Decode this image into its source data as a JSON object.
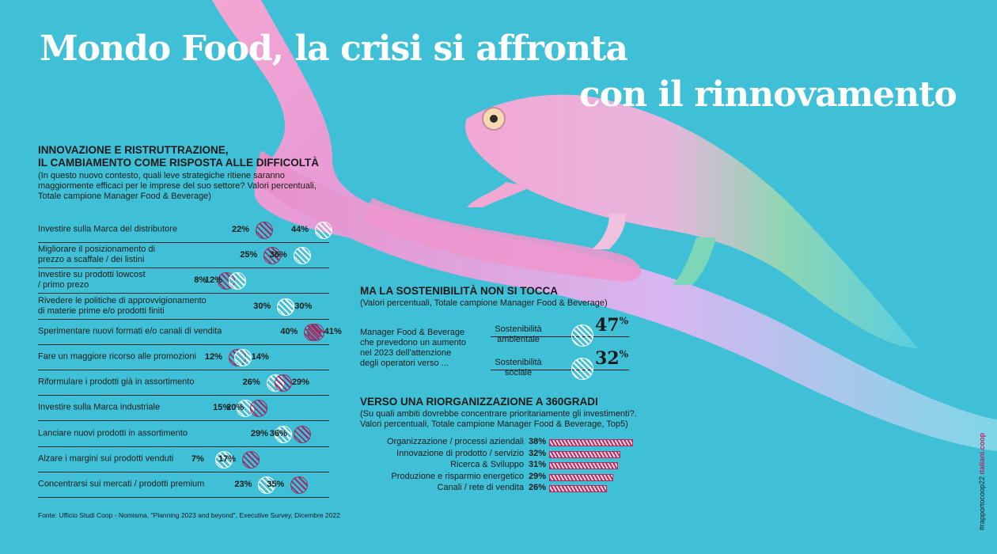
{
  "header": {
    "title_line1": "Mondo Food, la crisi si affronta",
    "title_line2": "con il rinnovamento"
  },
  "colors": {
    "background": "#3fc0d6",
    "accent_magenta": "#9a2b63",
    "bar_magenta": "#b22a5e",
    "branch_pink": "#f2a7d0"
  },
  "chart_data": [
    {
      "type": "dot_plot",
      "title": "INNOVAZIONE E RISTRUTTRAZIONE,",
      "title_line2": "IL CAMBIAMENTO COME RISPOSTA ALLE DIFFICOLTÀ",
      "subtitle": "(In questo nuovo contesto, quali leve strategiche ritiene saranno maggiormente efficaci per le imprese del suo settore? Valori percentuali, Totale campione Manager Food & Beverage)",
      "series": [
        {
          "name": "",
          "color": "magenta",
          "values": [
            22,
            25,
            8,
            30,
            40,
            12,
            26,
            15,
            29,
            7,
            23
          ]
        },
        {
          "name": "",
          "color": "white",
          "values": [
            44,
            36,
            12,
            30,
            41,
            14,
            29,
            20,
            36,
            17,
            35
          ]
        }
      ],
      "categories": [
        "Investire sulla Marca del distributore",
        "Migliorare il posizionamento di prezzo a scaffale / dei listini",
        "Investire su prodotti lowcost / primo prezo",
        "Rivedere le politiche di approvvigionamento di materie prime e/o prodotti finiti",
        "Sperimentare nuovi formati e/o canali di vendita",
        "Fare un maggiore ricorso alle promozioni",
        "Riformulare i prodotti già in assortimento",
        "Investire sulla Marca industriale",
        "Lanciare nuovi prodotti in assortimento",
        "Alzare i margini sui prodotti venduti",
        "Concentrarsi sui mercati / prodotti premium"
      ],
      "rows": [
        {
          "label_lines": [
            "Investire sulla Marca del distributore"
          ],
          "a": 22,
          "a_color": "magenta",
          "b": 44,
          "b_color": "white"
        },
        {
          "label_lines": [
            "Migliorare il posizionamento di",
            "prezzo a scaffale / dei listini"
          ],
          "a": 25,
          "a_color": "magenta",
          "b": 36,
          "b_color": "white"
        },
        {
          "label_lines": [
            "Investire su prodotti lowcost",
            "/ primo prezo"
          ],
          "a": 8,
          "a_color": "magenta",
          "b": 12,
          "b_color": "white"
        },
        {
          "label_lines": [
            "Rivedere le politiche di approvvigionamento",
            "di materie prime e/o prodotti finiti"
          ],
          "a": 30,
          "a_color": "white",
          "b": 30,
          "b_color": "white"
        },
        {
          "label_lines": [
            "Sperimentare nuovi formati e/o canali di vendita"
          ],
          "a": 40,
          "a_color": "magenta",
          "b": 41,
          "b_color": "magenta"
        },
        {
          "label_lines": [
            "Fare un maggiore ricorso alle promozioni"
          ],
          "a": 12,
          "a_color": "magenta",
          "b": 14,
          "b_color": "white"
        },
        {
          "label_lines": [
            "Riformulare i prodotti già in assortimento"
          ],
          "a": 26,
          "a_color": "white",
          "b": 29,
          "b_color": "magenta"
        },
        {
          "label_lines": [
            "Investire sulla Marca industriale"
          ],
          "a": 15,
          "a_color": "white",
          "b": 20,
          "b_color": "magenta"
        },
        {
          "label_lines": [
            "Lanciare nuovi prodotti in assortimento"
          ],
          "a": 29,
          "a_color": "white",
          "b": 36,
          "b_color": "magenta"
        },
        {
          "label_lines": [
            "Alzare i margini sui prodotti venduti"
          ],
          "a": 7,
          "a_color": "white",
          "b": 17,
          "b_color": "magenta"
        },
        {
          "label_lines": [
            "Concentrarsi sui mercati / prodotti premium"
          ],
          "a": 23,
          "a_color": "white",
          "b": 35,
          "b_color": "magenta"
        }
      ],
      "source": "Fonte: Ufficio Studi Coop - Nomisma,  \"Planning 2023 and beyond\", Executive Survey, Dicembre 2022"
    },
    {
      "type": "single_value",
      "title": "MA LA SOSTENIBILITÀ NON SI TOCCA",
      "subtitle": "(Valori percentuali, Totale campione Manager Food  & Beverage)",
      "description": "Manager Food & Beverage che prevedono un aumento nel 2023 dell'attenzione degli operatori verso ...",
      "description_lines": [
        "Manager Food & Beverage",
        "che prevedono un aumento",
        "nel 2023 dell'attenzione",
        "degli operatori verso ..."
      ],
      "categories": [
        "Sostenibilità ambientale",
        "Sostenibilità sociale"
      ],
      "values": [
        47,
        32
      ],
      "items": [
        {
          "label_lines": [
            "Sostenibilità",
            "ambientale"
          ],
          "value": 47
        },
        {
          "label_lines": [
            "Sostenibilità",
            "sociale"
          ],
          "value": 32
        }
      ],
      "unit": "%"
    },
    {
      "type": "bar",
      "orientation": "horizontal",
      "title": "VERSO UNA RIORGANIZZAZIONE A 360GRADI",
      "subtitle_lines": [
        "(Su quali ambiti dovrebbe concentrare prioritariamente gli investimenti?.",
        "Valori percentuali, Totale campione Manager Food  & Beverage, Top5)"
      ],
      "categories": [
        "Organizzazione / processi aziendali",
        "Innovazione di prodotto / servizio",
        "Ricerca & Sviluppo",
        "Produzione e risparmio energetico",
        "Canali / rete di vendita"
      ],
      "values": [
        38,
        32,
        31,
        29,
        26
      ]
    }
  ],
  "sidebar_text": {
    "tag": "#rapportocoop22",
    "brand": "italiani.coop"
  }
}
